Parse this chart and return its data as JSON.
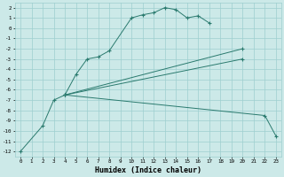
{
  "xlabel": "Humidex (Indice chaleur)",
  "xlim": [
    -0.5,
    23.5
  ],
  "ylim": [
    -12.5,
    2.5
  ],
  "xticks": [
    0,
    1,
    2,
    3,
    4,
    5,
    6,
    7,
    8,
    9,
    10,
    11,
    12,
    13,
    14,
    15,
    16,
    17,
    18,
    19,
    20,
    21,
    22,
    23
  ],
  "yticks": [
    2,
    1,
    0,
    -1,
    -2,
    -3,
    -4,
    -5,
    -6,
    -7,
    -8,
    -9,
    -10,
    -11,
    -12
  ],
  "bg_color": "#cce9e8",
  "grid_color": "#9dcfcf",
  "line_color": "#2a7a6e",
  "curves": [
    {
      "x": [
        0,
        2,
        3,
        4,
        5,
        6,
        7,
        8,
        10,
        11,
        12,
        13,
        14,
        15,
        16,
        17
      ],
      "y": [
        -12,
        -9.5,
        -7,
        -6.5,
        -4.5,
        -3,
        -2.8,
        -2.2,
        1.0,
        1.3,
        1.5,
        2.0,
        1.8,
        1.0,
        1.2,
        0.5
      ]
    },
    {
      "x": [
        4,
        20
      ],
      "y": [
        -6.5,
        -2.0
      ]
    },
    {
      "x": [
        4,
        20
      ],
      "y": [
        -6.5,
        -3.0
      ]
    },
    {
      "x": [
        4,
        22,
        23
      ],
      "y": [
        -6.5,
        -8.5,
        -10.5
      ]
    }
  ]
}
